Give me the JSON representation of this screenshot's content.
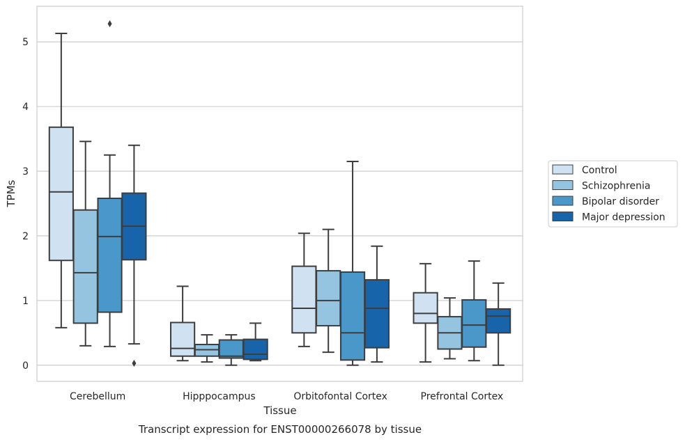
{
  "chart_data": {
    "type": "box",
    "xlabel": "Tissue",
    "ylabel": "TPMs",
    "caption": "Transcript expression for ENST00000266078 by tissue",
    "categories": [
      "Cerebellum",
      "Hipppocampus",
      "Orbitofontal Cortex",
      "Prefrontal Cortex"
    ],
    "ylim": [
      -0.25,
      5.55
    ],
    "yticks": [
      0,
      1,
      2,
      3,
      4,
      5
    ],
    "grid": "horizontal",
    "legend_position": "right",
    "series": [
      {
        "name": "Control",
        "color": "#d0e1f2",
        "boxes": [
          {
            "whisker_low": 0.58,
            "q1": 1.62,
            "median": 2.68,
            "q3": 3.68,
            "whisker_high": 5.13,
            "outliers": []
          },
          {
            "whisker_low": 0.07,
            "q1": 0.14,
            "median": 0.26,
            "q3": 0.66,
            "whisker_high": 1.22,
            "outliers": []
          },
          {
            "whisker_low": 0.29,
            "q1": 0.5,
            "median": 0.88,
            "q3": 1.53,
            "whisker_high": 2.04,
            "outliers": []
          },
          {
            "whisker_low": 0.05,
            "q1": 0.65,
            "median": 0.8,
            "q3": 1.12,
            "whisker_high": 1.57,
            "outliers": []
          }
        ]
      },
      {
        "name": "Schizophrenia",
        "color": "#94c4df",
        "boxes": [
          {
            "whisker_low": 0.3,
            "q1": 0.65,
            "median": 1.43,
            "q3": 2.4,
            "whisker_high": 3.46,
            "outliers": []
          },
          {
            "whisker_low": 0.05,
            "q1": 0.14,
            "median": 0.24,
            "q3": 0.32,
            "whisker_high": 0.47,
            "outliers": []
          },
          {
            "whisker_low": 0.2,
            "q1": 0.61,
            "median": 1.0,
            "q3": 1.46,
            "whisker_high": 2.1,
            "outliers": []
          },
          {
            "whisker_low": 0.1,
            "q1": 0.25,
            "median": 0.5,
            "q3": 0.75,
            "whisker_high": 1.04,
            "outliers": []
          }
        ]
      },
      {
        "name": "Bipolar disorder",
        "color": "#4a98c9",
        "boxes": [
          {
            "whisker_low": 0.29,
            "q1": 0.82,
            "median": 1.99,
            "q3": 2.58,
            "whisker_high": 3.25,
            "outliers": [
              5.28
            ]
          },
          {
            "whisker_low": 0.0,
            "q1": 0.11,
            "median": 0.14,
            "q3": 0.39,
            "whisker_high": 0.47,
            "outliers": []
          },
          {
            "whisker_low": 0.0,
            "q1": 0.08,
            "median": 0.5,
            "q3": 1.44,
            "whisker_high": 3.15,
            "outliers": []
          },
          {
            "whisker_low": 0.07,
            "q1": 0.28,
            "median": 0.62,
            "q3": 1.01,
            "whisker_high": 1.61,
            "outliers": []
          }
        ]
      },
      {
        "name": "Major depression",
        "color": "#1764ab",
        "boxes": [
          {
            "whisker_low": 0.33,
            "q1": 1.63,
            "median": 2.15,
            "q3": 2.66,
            "whisker_high": 3.4,
            "outliers": [
              0.03
            ]
          },
          {
            "whisker_low": 0.07,
            "q1": 0.09,
            "median": 0.17,
            "q3": 0.4,
            "whisker_high": 0.65,
            "outliers": []
          },
          {
            "whisker_low": 0.05,
            "q1": 0.27,
            "median": 0.88,
            "q3": 1.32,
            "whisker_high": 1.84,
            "outliers": []
          },
          {
            "whisker_low": 0.0,
            "q1": 0.5,
            "median": 0.76,
            "q3": 0.87,
            "whisker_high": 1.27,
            "outliers": []
          }
        ]
      }
    ]
  }
}
